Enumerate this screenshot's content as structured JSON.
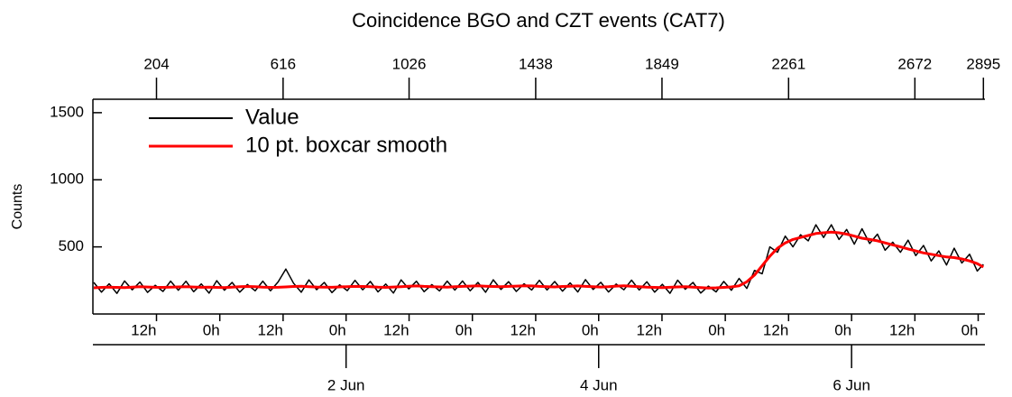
{
  "chart_data": {
    "type": "line",
    "title": "Coincidence BGO and CZT events (CAT7)",
    "ylabel": "Counts",
    "x": [
      0,
      25,
      50,
      75,
      100,
      125,
      150,
      175,
      200,
      225,
      250,
      275,
      300,
      325,
      350,
      375,
      400,
      425,
      450,
      475,
      500,
      525,
      550,
      575,
      600,
      625,
      650,
      675,
      700,
      725,
      750,
      775,
      800,
      825,
      850,
      875,
      900,
      925,
      950,
      975,
      1000,
      1025,
      1050,
      1075,
      1100,
      1125,
      1150,
      1175,
      1200,
      1225,
      1250,
      1275,
      1300,
      1325,
      1350,
      1375,
      1400,
      1425,
      1450,
      1475,
      1500,
      1525,
      1550,
      1575,
      1600,
      1625,
      1650,
      1675,
      1700,
      1725,
      1750,
      1775,
      1800,
      1825,
      1850,
      1875,
      1900,
      1925,
      1950,
      1975,
      2000,
      2025,
      2050,
      2075,
      2100,
      2125,
      2150,
      2175,
      2200,
      2225,
      2250,
      2275,
      2300,
      2325,
      2350,
      2375,
      2400,
      2425,
      2450,
      2475,
      2500,
      2525,
      2550,
      2575,
      2600,
      2625,
      2650,
      2675,
      2700,
      2725,
      2750,
      2775,
      2800,
      2825,
      2850,
      2875,
      2895
    ],
    "series": [
      {
        "name": "Value",
        "color": "#000000",
        "values": [
          235,
          163,
          225,
          153,
          246,
          180,
          238,
          161,
          214,
          168,
          245,
          177,
          244,
          166,
          224,
          155,
          248,
          177,
          235,
          163,
          220,
          173,
          245,
          173,
          239,
          335,
          230,
          162,
          254,
          181,
          235,
          159,
          217,
          174,
          251,
          180,
          243,
          165,
          223,
          156,
          254,
          187,
          244,
          166,
          219,
          172,
          245,
          178,
          246,
          173,
          235,
          162,
          255,
          183,
          241,
          168,
          225,
          179,
          251,
          179,
          242,
          170,
          232,
          164,
          256,
          183,
          236,
          164,
          223,
          180,
          252,
          179,
          240,
          163,
          221,
          154,
          252,
          184,
          235,
          156,
          208,
          165,
          243,
          177,
          265,
          190,
          325,
          300,
          500,
          460,
          580,
          500,
          590,
          545,
          665,
          570,
          665,
          555,
          630,
          520,
          635,
          525,
          595,
          475,
          535,
          460,
          550,
          435,
          510,
          395,
          470,
          365,
          490,
          380,
          445,
          320,
          370
        ]
      },
      {
        "name": "10 pt. boxcar smooth",
        "color": "#ff0000",
        "values": [
          195,
          198,
          200,
          198,
          196,
          200,
          203,
          201,
          199,
          198,
          200,
          202,
          204,
          201,
          199,
          200,
          198,
          197,
          200,
          203,
          205,
          203,
          200,
          198,
          199,
          202,
          205,
          207,
          204,
          201,
          200,
          199,
          202,
          204,
          206,
          205,
          203,
          200,
          198,
          201,
          204,
          207,
          209,
          206,
          204,
          202,
          200,
          203,
          206,
          208,
          210,
          207,
          205,
          203,
          206,
          208,
          210,
          209,
          206,
          204,
          202,
          205,
          207,
          209,
          206,
          203,
          201,
          204,
          208,
          210,
          207,
          204,
          200,
          198,
          196,
          199,
          202,
          204,
          200,
          196,
          193,
          195,
          198,
          202,
          210,
          240,
          290,
          360,
          430,
          490,
          530,
          555,
          570,
          585,
          600,
          605,
          610,
          605,
          595,
          580,
          565,
          555,
          545,
          530,
          515,
          500,
          485,
          470,
          455,
          445,
          435,
          425,
          420,
          410,
          395,
          375,
          350
        ]
      }
    ],
    "xlim": [
      0,
      2900
    ],
    "ylim": [
      0,
      1600
    ],
    "yticks": [
      500,
      1000,
      1500
    ],
    "x2ticks": [
      204,
      616,
      1026,
      1438,
      1849,
      2261,
      2672,
      2895
    ],
    "xticks": [
      {
        "value": 204,
        "label": "12h"
      },
      {
        "value": 410,
        "label": "0h"
      },
      {
        "value": 616,
        "label": "12h"
      },
      {
        "value": 821,
        "label": "0h"
      },
      {
        "value": 1026,
        "label": "12h"
      },
      {
        "value": 1232,
        "label": "0h"
      },
      {
        "value": 1438,
        "label": "12h"
      },
      {
        "value": 1643,
        "label": "0h"
      },
      {
        "value": 1849,
        "label": "12h"
      },
      {
        "value": 2055,
        "label": "0h"
      },
      {
        "value": 2261,
        "label": "12h"
      },
      {
        "value": 2466,
        "label": "0h"
      },
      {
        "value": 2672,
        "label": "12h"
      },
      {
        "value": 2878,
        "label": "0h"
      }
    ],
    "date_ticks": [
      {
        "value": 821,
        "label": "2 Jun"
      },
      {
        "value": 1643,
        "label": "4 Jun"
      },
      {
        "value": 2466,
        "label": "6 Jun"
      }
    ],
    "legend": "upper left"
  }
}
